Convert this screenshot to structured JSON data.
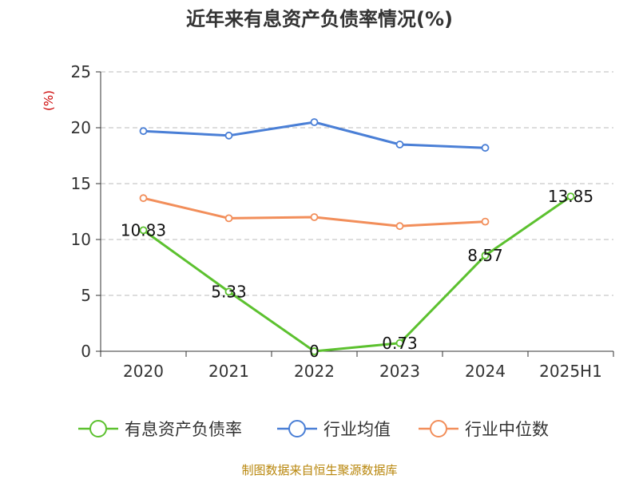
{
  "chart_data": {
    "type": "line",
    "title": "近年来有息资产负债率情况(%)",
    "unit_label": "(%)",
    "categories": [
      "2020",
      "2021",
      "2022",
      "2023",
      "2024",
      "2025H1"
    ],
    "ylim": [
      0,
      25
    ],
    "yticks": [
      0,
      5,
      10,
      15,
      20,
      25
    ],
    "grid": true,
    "legend_position": "bottom",
    "series": [
      {
        "name": "有息资产负债率",
        "color": "#5cc12f",
        "values": [
          10.83,
          5.33,
          0,
          0.73,
          8.57,
          13.85
        ],
        "labels": [
          "10.83",
          "5.33",
          "0",
          "0.73",
          "8.57",
          "13.85"
        ]
      },
      {
        "name": "行业均值",
        "color": "#4a7fd6",
        "values": [
          19.7,
          19.3,
          20.5,
          18.5,
          18.2,
          null
        ]
      },
      {
        "name": "行业中位数",
        "color": "#f28e5a",
        "values": [
          13.7,
          11.9,
          12.0,
          11.2,
          11.6,
          null
        ]
      }
    ]
  },
  "source": "制图数据来自恒生聚源数据库"
}
